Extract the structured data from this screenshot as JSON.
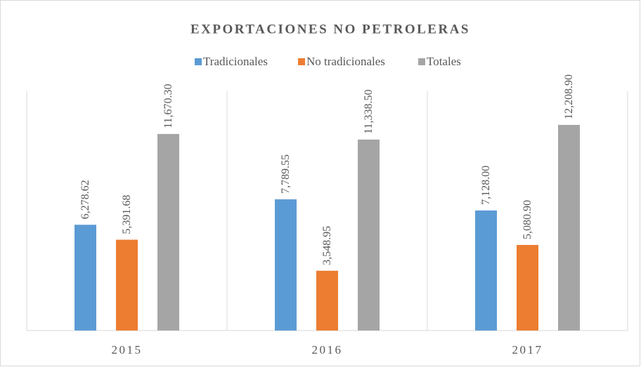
{
  "chart_data": {
    "type": "bar",
    "title": "EXPORTACIONES NO PETROLERAS",
    "categories": [
      "2015",
      "2016",
      "2017"
    ],
    "series": [
      {
        "name": "Tradicionales",
        "color": "#5b9bd5",
        "values": [
          6278.62,
          7789.55,
          7128.0
        ],
        "value_labels": [
          "6,278.62",
          "7,789.55",
          "7,128.00"
        ]
      },
      {
        "name": "No tradicionales",
        "color": "#ed7d31",
        "values": [
          5391.68,
          3548.95,
          5080.9
        ],
        "value_labels": [
          "5,391.68",
          "3,548.95",
          "5,080.90"
        ]
      },
      {
        "name": "Totales",
        "color": "#a5a5a5",
        "values": [
          11670.3,
          11338.5,
          12208.9
        ],
        "value_labels": [
          "11,670.30",
          "11,338.50",
          "12,208.90"
        ]
      }
    ],
    "ylim": [
      0,
      14000
    ],
    "legend": "top"
  }
}
